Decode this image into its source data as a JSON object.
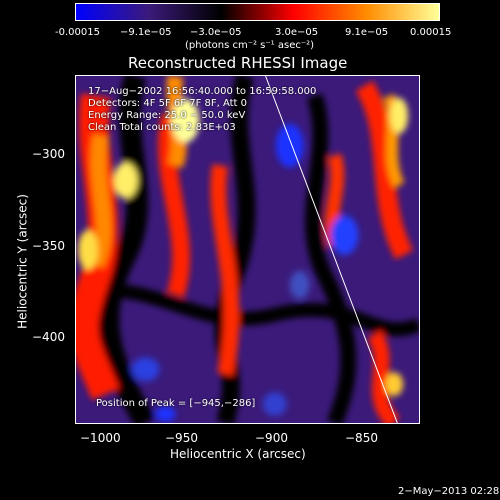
{
  "colorbar": {
    "ticks": [
      "-0.00015",
      "−9.1e−05",
      "−3.0e−05",
      "3.0e−05",
      "9.1e−05",
      "0.00015"
    ],
    "units": "(photons cm⁻² s⁻¹ asec⁻²)",
    "colors": [
      "#0000ff",
      "#3b1a7a",
      "#000000",
      "#ff0000",
      "#ff8c00",
      "#ffff99"
    ]
  },
  "chart_data": {
    "type": "heatmap",
    "title": "Reconstructed RHESSI Image",
    "xlabel": "Heliocentric X (arcsec)",
    "ylabel": "Heliocentric Y (arcsec)",
    "x_ticks": [
      "−1000",
      "−950",
      "−900",
      "−850"
    ],
    "y_ticks": [
      "−300",
      "−350",
      "−400"
    ],
    "xlim": [
      -1010,
      -820
    ],
    "ylim": [
      -450,
      -260
    ],
    "annotations": {
      "time": "17−Aug−2002 16:56:40.000 to 16:59:58.000",
      "detectors": "Detectors: 4F 5F 6F 7F 8F, Att 0",
      "energy": "Energy Range: 25.0 − 50.0 keV",
      "clean": "Clean     Total counts: 2.83E+03",
      "peak": "Position of Peak = [−945,−286]"
    },
    "limb_line": {
      "x1": -905,
      "y1": -260,
      "x2": -832,
      "y2": -450
    }
  },
  "footer": {
    "timestamp": "2−May−2013 02:28"
  }
}
